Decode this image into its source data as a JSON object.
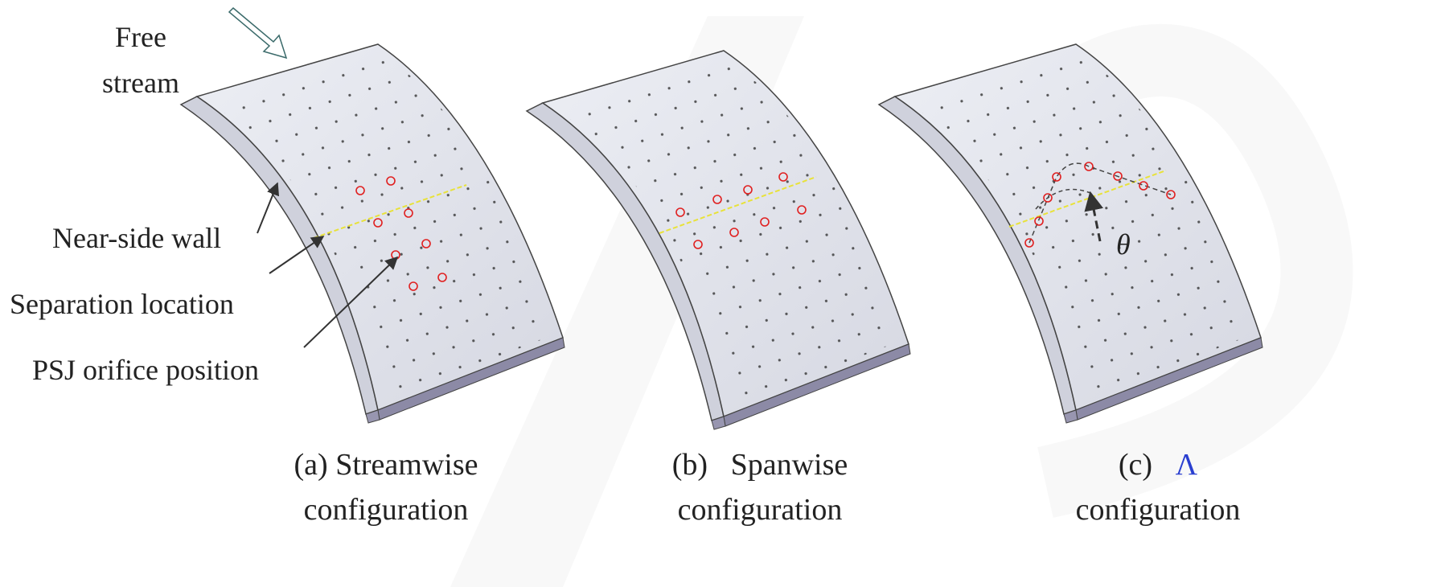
{
  "labels": {
    "free_stream": {
      "line1": "Free",
      "line2": "stream"
    },
    "near_side_wall": "Near-side wall",
    "separation_location": "Separation location",
    "psj_orifice_position": "PSJ orifice position",
    "theta": "θ"
  },
  "captions": [
    {
      "label": "(a)",
      "title": "Streamwise",
      "line2": "configuration"
    },
    {
      "label": "(b)",
      "title": "Spanwise",
      "line2": "configuration"
    },
    {
      "label": "(c)",
      "title": "Λ",
      "line2": "configuration"
    }
  ]
}
